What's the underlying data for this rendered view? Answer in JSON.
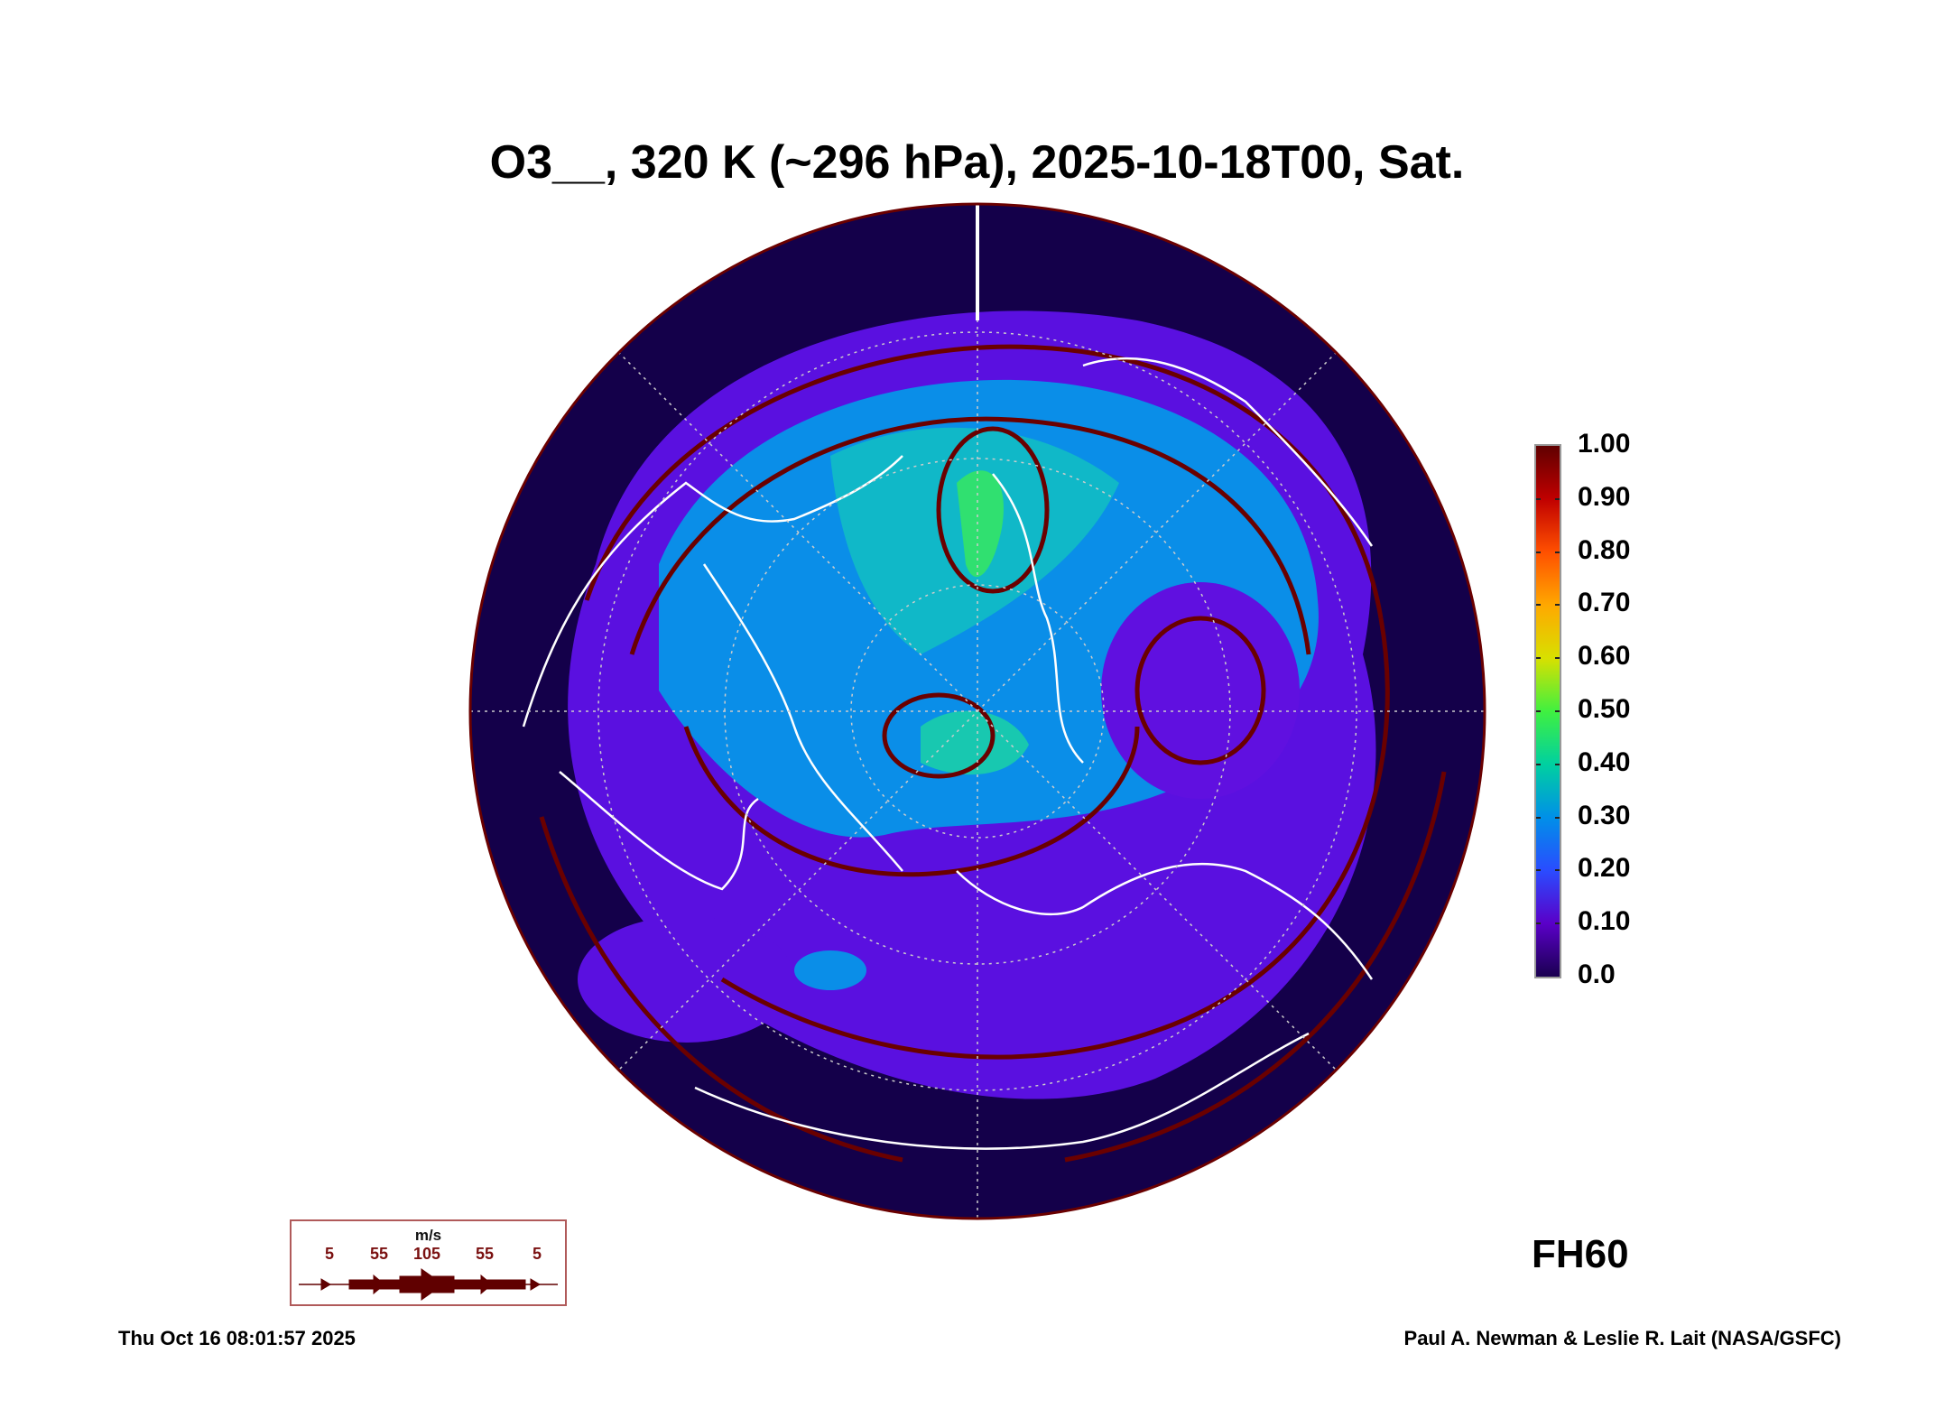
{
  "title": "O3__, 320 K (~296 hPa), 2025-10-18T00, Sat.",
  "colorbar": {
    "labels": [
      "1.00",
      "0.90",
      "0.80",
      "0.70",
      "0.60",
      "0.50",
      "0.40",
      "0.30",
      "0.20",
      "0.10",
      "0.0"
    ],
    "range": [
      0.0,
      1.0
    ]
  },
  "forecast_hour": "FH60",
  "wind_legend": {
    "unit": "m/s",
    "values": [
      "5",
      "55",
      "105",
      "55",
      "5"
    ],
    "color": "#6a0000"
  },
  "footer": {
    "timestamp": "Thu Oct 16 08:01:57 2025",
    "credit": "Paul A. Newman & Leslie R. Lait (NASA/GSFC)"
  },
  "colors": {
    "background_field": "#14004a",
    "low": "#5a10e0",
    "mid": "#0aa8d8",
    "high": "#30e070",
    "streamline": "#6a0000",
    "coast": "#ffffff"
  }
}
